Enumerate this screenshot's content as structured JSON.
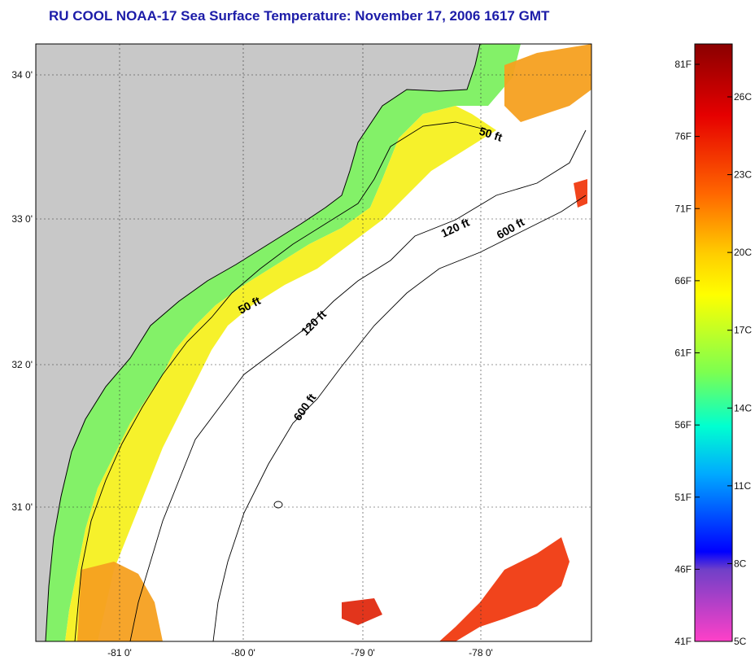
{
  "title": "RU COOL  NOAA-17  Sea Surface Temperature:  November 17, 2006 1617 GMT",
  "axes": {
    "lat_ticks": [
      "34 0'",
      "33 0'",
      "32 0'",
      "31 0'"
    ],
    "lon_ticks": [
      "-81 0'",
      "-80 0'",
      "-79 0'",
      "-78 0'"
    ]
  },
  "contours": {
    "labels": [
      "50 ft",
      "120 ft",
      "600 ft",
      "50 ft",
      "120 ft",
      "600 ft"
    ]
  },
  "colorbar": {
    "fahrenheit": [
      "81F",
      "76F",
      "71F",
      "66F",
      "61F",
      "56F",
      "51F",
      "46F",
      "41F"
    ],
    "celsius": [
      "26C",
      "23C",
      "20C",
      "17C",
      "14C",
      "11C",
      "8C",
      "5C"
    ]
  },
  "colors": {
    "land": "#c8c8c8",
    "title": "#1c1ca8",
    "sst_cool": "#7cf060",
    "sst_mid": "#f6f020",
    "sst_warm": "#f6a020",
    "sst_hot": "#f03a10"
  },
  "icons": [
    "coastline-icon",
    "bathymetry-contour-icon"
  ]
}
